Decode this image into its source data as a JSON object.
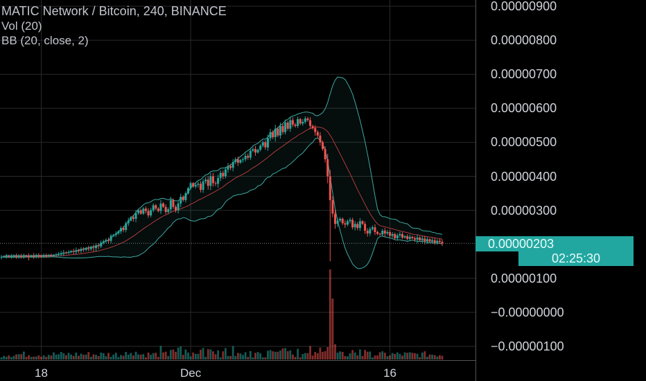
{
  "legend": {
    "title": "MATIC Network / Bitcoin, 240, BINANCE",
    "volume": "Vol (20)",
    "bollinger": "BB (20, close, 2)"
  },
  "price_tag": "0.00000203",
  "timer_tag": "02:25:30",
  "colors": {
    "background": "#000000",
    "up": "#26a69a",
    "down": "#ef5350",
    "bb_basis": "#b23b3b",
    "bb_band": "#3fa9a1",
    "grid": "#2a2a2a",
    "tag": "#22a7a0"
  },
  "chart_data": {
    "type": "candlestick",
    "symbol": "MATIC Network / Bitcoin",
    "interval": "240",
    "exchange": "BINANCE",
    "indicators": [
      "Vol (20)",
      "BB (20, close, 2)"
    ],
    "y_axis_labels": [
      "0.00000900",
      "0.00000800",
      "0.00000700",
      "0.00000600",
      "0.00000500",
      "0.00000400",
      "0.00000300",
      "0.00000100",
      "−0.00000000",
      "−0.00000100"
    ],
    "y_ticks": [
      900,
      800,
      700,
      600,
      500,
      400,
      300,
      100,
      0,
      -100
    ],
    "y_unit_note": "values in 1e-8 BTC",
    "ylim": [
      -125,
      925
    ],
    "x_labels": [
      {
        "label": "18",
        "bar": 16
      },
      {
        "label": "Dec",
        "bar": 76
      },
      {
        "label": "16",
        "bar": 156
      }
    ],
    "last_price": 203,
    "close": [
      163,
      164,
      166,
      164,
      165,
      166,
      163,
      165,
      164,
      166,
      165,
      164,
      166,
      165,
      167,
      166,
      165,
      167,
      166,
      168,
      167,
      168,
      170,
      172,
      174,
      176,
      175,
      177,
      180,
      178,
      182,
      181,
      186,
      184,
      188,
      186,
      191,
      189,
      196,
      194,
      205,
      209,
      213,
      210,
      225,
      228,
      232,
      238,
      248,
      242,
      262,
      270,
      280,
      275,
      292,
      300,
      290,
      305,
      298,
      285,
      300,
      315,
      305,
      298,
      320,
      310,
      295,
      303,
      330,
      310,
      300,
      320,
      340,
      330,
      350,
      365,
      380,
      370,
      375,
      378,
      360,
      385,
      390,
      372,
      400,
      380,
      378,
      395,
      410,
      400,
      420,
      430,
      425,
      442,
      450,
      440,
      448,
      450,
      460,
      455,
      475,
      480,
      470,
      478,
      490,
      500,
      485,
      512,
      530,
      515,
      540,
      520,
      548,
      530,
      558,
      540,
      565,
      552,
      548,
      568,
      555,
      560,
      570,
      565,
      548,
      542,
      530,
      520,
      500,
      480,
      450,
      400,
      330,
      290,
      260,
      270,
      275,
      262,
      258,
      268,
      272,
      250,
      260,
      248,
      268,
      260,
      240,
      232,
      245,
      250,
      236,
      231,
      229,
      240,
      232,
      236,
      225,
      230,
      218,
      226,
      230,
      220,
      224,
      216,
      222,
      218,
      214,
      220,
      212,
      217,
      209,
      215,
      208,
      212,
      205,
      210,
      207,
      203
    ]
  }
}
